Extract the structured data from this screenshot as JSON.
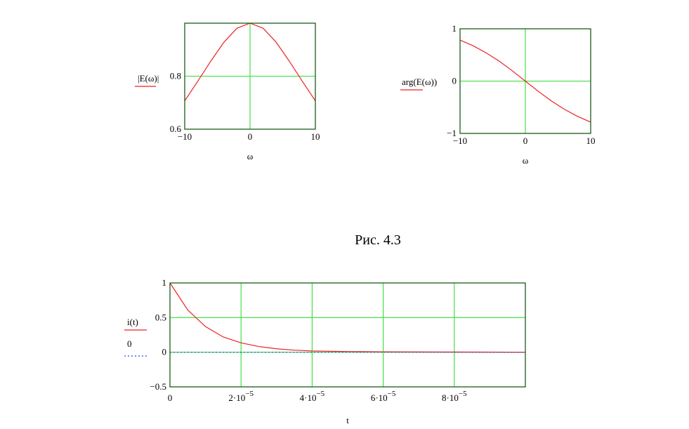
{
  "caption": "Рис. 4.3",
  "chart_data": [
    {
      "type": "line",
      "id": "magnitude",
      "xlabel": "ω",
      "ylabel": "|E(ω)|",
      "xlim": [
        -10,
        10
      ],
      "ylim": [
        0.6,
        1.0
      ],
      "x_ticks": [
        {
          "v": -10,
          "t": "−10"
        },
        {
          "v": 0,
          "t": "0"
        },
        {
          "v": 10,
          "t": "10"
        }
      ],
      "y_ticks": [
        {
          "v": 0.6,
          "t": "0.6"
        },
        {
          "v": 0.8,
          "t": "0.8"
        }
      ],
      "grid_x": [
        0
      ],
      "grid_y": [
        0.8
      ],
      "series": [
        {
          "color": "#ee2222",
          "x": [
            -10,
            -8,
            -6,
            -4,
            -2,
            0,
            2,
            4,
            6,
            8,
            10
          ],
          "y": [
            0.707,
            0.781,
            0.857,
            0.928,
            0.981,
            1.0,
            0.981,
            0.928,
            0.857,
            0.781,
            0.707
          ]
        }
      ]
    },
    {
      "type": "line",
      "id": "phase",
      "xlabel": "ω",
      "ylabel": "arg(E(ω))",
      "xlim": [
        -10,
        10
      ],
      "ylim": [
        -1,
        1
      ],
      "x_ticks": [
        {
          "v": -10,
          "t": "−10"
        },
        {
          "v": 0,
          "t": "0"
        },
        {
          "v": 10,
          "t": "10"
        }
      ],
      "y_ticks": [
        {
          "v": 1,
          "t": "1"
        },
        {
          "v": 0,
          "t": "0"
        },
        {
          "v": -1,
          "t": "−1"
        }
      ],
      "grid_x": [
        0
      ],
      "grid_y": [
        0
      ],
      "series": [
        {
          "color": "#ee2222",
          "x": [
            -10,
            -8,
            -6,
            -4,
            -2,
            0,
            2,
            4,
            6,
            8,
            10
          ],
          "y": [
            0.785,
            0.675,
            0.54,
            0.381,
            0.197,
            0.0,
            -0.197,
            -0.381,
            -0.54,
            -0.675,
            -0.785
          ]
        }
      ]
    },
    {
      "type": "line",
      "id": "current",
      "xlabel": "t",
      "ylabel": "i(t)",
      "ylabel2": "0",
      "xlim": [
        0,
        0.0001
      ],
      "ylim": [
        -0.5,
        1
      ],
      "x_ticks": [
        {
          "v": 0,
          "m": "0",
          "e": ""
        },
        {
          "v": 2e-05,
          "m": "2·10",
          "e": "−5"
        },
        {
          "v": 4e-05,
          "m": "4·10",
          "e": "−5"
        },
        {
          "v": 6e-05,
          "m": "6·10",
          "e": "−5"
        },
        {
          "v": 8e-05,
          "m": "8·10",
          "e": "−5"
        }
      ],
      "y_ticks": [
        {
          "v": 1,
          "t": "1"
        },
        {
          "v": 0.5,
          "t": "0.5"
        },
        {
          "v": 0,
          "t": "0"
        },
        {
          "v": -0.5,
          "t": "−0.5"
        }
      ],
      "grid_x": [
        2e-05,
        4e-05,
        6e-05,
        8e-05
      ],
      "grid_y": [
        0.5,
        0
      ],
      "series": [
        {
          "color": "#ee2222",
          "x": [
            0,
            5e-06,
            1e-05,
            1.5e-05,
            2e-05,
            2.5e-05,
            3e-05,
            3.5e-05,
            4e-05,
            5e-05,
            6e-05,
            7e-05,
            8e-05,
            9e-05,
            0.0001
          ],
          "y": [
            1.0,
            0.61,
            0.37,
            0.22,
            0.135,
            0.082,
            0.05,
            0.03,
            0.018,
            0.01,
            0.006,
            0.004,
            0.003,
            0.002,
            0.0
          ]
        },
        {
          "color": "#3344ee",
          "dotted": true,
          "x": [
            0,
            0.0001
          ],
          "y": [
            0,
            0
          ]
        }
      ]
    }
  ]
}
